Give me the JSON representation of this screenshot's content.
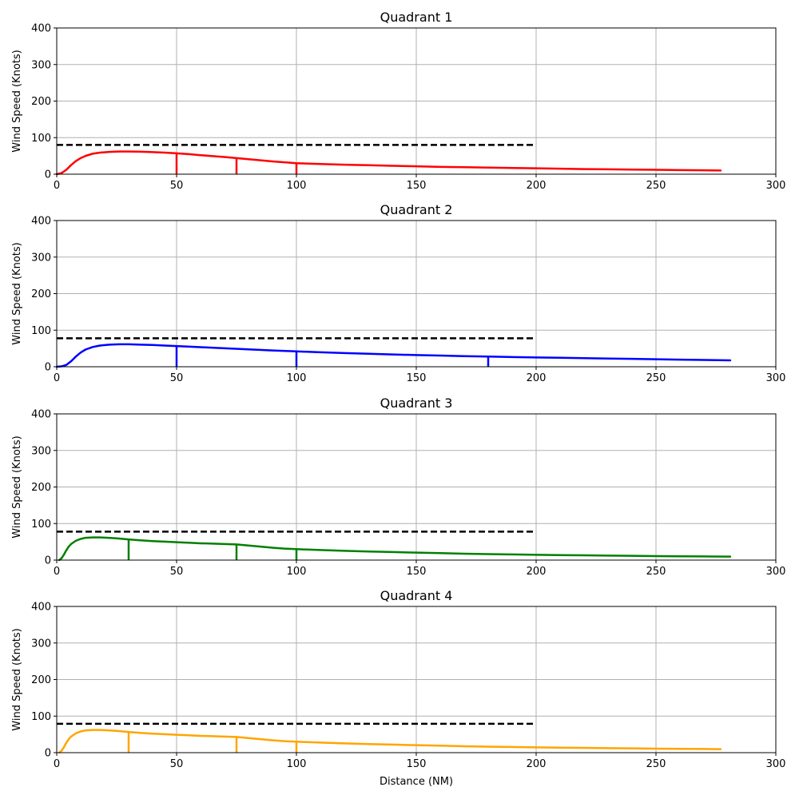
{
  "chart_data": [
    {
      "type": "line",
      "title": "Quadrant 1",
      "xlabel": "",
      "ylabel": "Wind Speed (Knots)",
      "xlim": [
        0,
        300
      ],
      "ylim": [
        0,
        400
      ],
      "xticks": [
        0,
        50,
        100,
        150,
        200,
        250,
        300
      ],
      "yticks": [
        0,
        100,
        200,
        300,
        400
      ],
      "grid": true,
      "color": "#ff0000",
      "series": [
        {
          "x": [
            0,
            2,
            4,
            6,
            8,
            10,
            12,
            15,
            18,
            22,
            26,
            30,
            35,
            40,
            45,
            50,
            55,
            60,
            65,
            70,
            75,
            80,
            85,
            90,
            95,
            100,
            110,
            120,
            130,
            140,
            150,
            160,
            170,
            180,
            190,
            200,
            210,
            220,
            230,
            240,
            250,
            260,
            270,
            277
          ],
          "y": [
            0,
            3,
            12,
            25,
            36,
            44,
            50,
            56,
            59,
            61,
            62,
            62,
            61.5,
            60.5,
            59,
            57,
            55,
            52,
            49.5,
            47,
            44,
            41,
            38,
            35,
            32.5,
            30,
            28,
            26,
            24.5,
            23,
            21.5,
            20,
            19,
            18,
            17,
            16,
            15,
            14,
            13.3,
            12.7,
            12,
            11.3,
            10.6,
            10
          ]
        }
      ],
      "threshold": {
        "x": [
          0,
          200
        ],
        "y": 80
      },
      "markers": [
        {
          "x": 50,
          "y": 57
        },
        {
          "x": 75,
          "y": 44
        },
        {
          "x": 100,
          "y": 30
        }
      ]
    },
    {
      "type": "line",
      "title": "Quadrant 2",
      "xlabel": "",
      "ylabel": "Wind Speed (Knots)",
      "xlim": [
        0,
        300
      ],
      "ylim": [
        0,
        400
      ],
      "xticks": [
        0,
        50,
        100,
        150,
        200,
        250,
        300
      ],
      "yticks": [
        0,
        100,
        200,
        300,
        400
      ],
      "grid": true,
      "color": "#0000ff",
      "series": [
        {
          "x": [
            0,
            2,
            4,
            6,
            8,
            10,
            12,
            15,
            18,
            22,
            26,
            30,
            35,
            40,
            45,
            50,
            60,
            70,
            80,
            90,
            100,
            110,
            120,
            130,
            140,
            150,
            160,
            170,
            180,
            190,
            200,
            210,
            220,
            230,
            240,
            250,
            260,
            270,
            281
          ],
          "y": [
            0,
            1,
            5,
            15,
            28,
            39,
            47,
            54,
            58,
            60.5,
            61.5,
            61.5,
            60.5,
            59.5,
            58,
            56.5,
            53.5,
            50.5,
            47.5,
            44.5,
            42,
            39.5,
            37.5,
            35.5,
            33.5,
            32,
            30.5,
            29,
            28,
            26.5,
            25.5,
            24.5,
            23.5,
            22.5,
            21.5,
            20.5,
            19.5,
            18.5,
            17.5
          ]
        }
      ],
      "threshold": {
        "x": [
          0,
          200
        ],
        "y": 78
      },
      "markers": [
        {
          "x": 50,
          "y": 56.5
        },
        {
          "x": 100,
          "y": 42
        },
        {
          "x": 180,
          "y": 28
        }
      ]
    },
    {
      "type": "line",
      "title": "Quadrant 3",
      "xlabel": "",
      "ylabel": "Wind Speed (Knots)",
      "xlim": [
        0,
        300
      ],
      "ylim": [
        0,
        400
      ],
      "xticks": [
        0,
        50,
        100,
        150,
        200,
        250,
        300
      ],
      "yticks": [
        0,
        100,
        200,
        300,
        400
      ],
      "grid": true,
      "color": "#008000",
      "series": [
        {
          "x": [
            1,
            2,
            3,
            4,
            5,
            6,
            8,
            10,
            12,
            15,
            18,
            20,
            25,
            30,
            35,
            40,
            45,
            50,
            55,
            60,
            65,
            70,
            75,
            80,
            85,
            90,
            95,
            100,
            110,
            120,
            130,
            140,
            150,
            160,
            170,
            180,
            190,
            200,
            210,
            220,
            230,
            240,
            250,
            260,
            270,
            281
          ],
          "y": [
            0,
            5,
            15,
            27,
            37,
            44,
            53,
            58,
            61,
            62,
            62,
            61.5,
            59.5,
            56.5,
            54,
            52,
            50.5,
            49,
            47.5,
            46,
            45,
            44,
            43,
            40,
            37,
            34,
            31.5,
            30,
            27.5,
            25.5,
            23.5,
            22,
            20.5,
            19,
            17.5,
            16.5,
            15.5,
            14.5,
            13.8,
            13,
            12.3,
            11.7,
            11,
            10.5,
            10,
            9.5
          ]
        }
      ],
      "threshold": {
        "x": [
          0,
          200
        ],
        "y": 78
      },
      "markers": [
        {
          "x": 30,
          "y": 56.5
        },
        {
          "x": 75,
          "y": 43
        },
        {
          "x": 100,
          "y": 30
        }
      ]
    },
    {
      "type": "line",
      "title": "Quadrant 4",
      "xlabel": "Distance (NM)",
      "ylabel": "Wind Speed (Knots)",
      "xlim": [
        0,
        300
      ],
      "ylim": [
        0,
        400
      ],
      "xticks": [
        0,
        50,
        100,
        150,
        200,
        250,
        300
      ],
      "yticks": [
        0,
        100,
        200,
        300,
        400
      ],
      "grid": true,
      "color": "#ffa500",
      "series": [
        {
          "x": [
            1,
            2,
            3,
            4,
            5,
            6,
            8,
            10,
            12,
            15,
            18,
            20,
            25,
            30,
            35,
            40,
            45,
            50,
            55,
            60,
            65,
            70,
            75,
            80,
            85,
            90,
            95,
            100,
            110,
            120,
            130,
            140,
            150,
            160,
            170,
            180,
            190,
            200,
            210,
            220,
            230,
            240,
            250,
            260,
            270,
            277
          ],
          "y": [
            0,
            5,
            15,
            27,
            37,
            44,
            53,
            58,
            61,
            62,
            62,
            61.5,
            59.5,
            56.5,
            54,
            52,
            50.5,
            49,
            47.5,
            46,
            45,
            44,
            43,
            40,
            37,
            34,
            31.5,
            30,
            27.5,
            25.5,
            23.5,
            22,
            20.5,
            19,
            17.5,
            16.5,
            15.5,
            14.5,
            13.8,
            13,
            12.3,
            11.7,
            11,
            10.5,
            10,
            9.5
          ]
        }
      ],
      "threshold": {
        "x": [
          0,
          200
        ],
        "y": 79
      },
      "markers": [
        {
          "x": 30,
          "y": 56.5
        },
        {
          "x": 75,
          "y": 43
        },
        {
          "x": 100,
          "y": 30
        }
      ]
    }
  ]
}
